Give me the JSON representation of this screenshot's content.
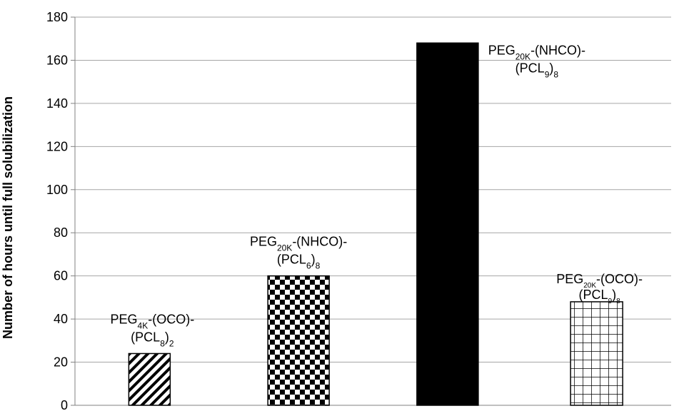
{
  "chart_data": {
    "type": "bar",
    "ylabel": "Number of hours until full solubilization",
    "ylim": [
      0,
      180
    ],
    "yticks": [
      0,
      20,
      40,
      60,
      80,
      100,
      120,
      140,
      160,
      180
    ],
    "grid": true,
    "legend": "none",
    "categories": [
      "PEG4K-(OCO)-(PCL8)2",
      "PEG20K-(NHCO)-(PCL6)8",
      "PEG20K-(NHCO)-(PCL9)8",
      "PEG20K-(OCO)-(PCL9)8"
    ],
    "values": [
      24,
      60,
      168,
      48
    ],
    "bar_labels": [
      {
        "line1": [
          {
            "t": "PEG"
          },
          {
            "t": "4K",
            "sub": true
          },
          {
            "t": "-(OCO)-"
          }
        ],
        "line2": [
          {
            "t": "(PCL"
          },
          {
            "t": "8",
            "sub": true
          },
          {
            "t": ")"
          },
          {
            "t": "2",
            "sub": true
          }
        ]
      },
      {
        "line1": [
          {
            "t": "PEG"
          },
          {
            "t": "20K",
            "sub": true
          },
          {
            "t": "-(NHCO)-"
          }
        ],
        "line2": [
          {
            "t": "(PCL"
          },
          {
            "t": "6",
            "sub": true
          },
          {
            "t": ")"
          },
          {
            "t": "8",
            "sub": true
          }
        ]
      },
      {
        "line1": [
          {
            "t": "PEG"
          },
          {
            "t": "20K",
            "sub": true
          },
          {
            "t": "-(NHCO)-"
          }
        ],
        "line2": [
          {
            "t": "(PCL"
          },
          {
            "t": "9",
            "sub": true
          },
          {
            "t": ")"
          },
          {
            "t": "8",
            "sub": true
          }
        ]
      },
      {
        "line1": [
          {
            "t": "PEG"
          },
          {
            "t": "20K",
            "sub": true
          },
          {
            "t": "-(OCO)-"
          }
        ],
        "line2": [
          {
            "t": "(PCL"
          },
          {
            "t": "9",
            "sub": true
          },
          {
            "t": ")"
          },
          {
            "t": "8",
            "sub": true
          }
        ]
      }
    ],
    "bar_fills": [
      "diagonal-stripes",
      "checkerboard",
      "solid-black",
      "grid"
    ],
    "colors": {
      "bar": "#000000",
      "background": "#ffffff",
      "gridline": "#a6a6a6"
    }
  }
}
